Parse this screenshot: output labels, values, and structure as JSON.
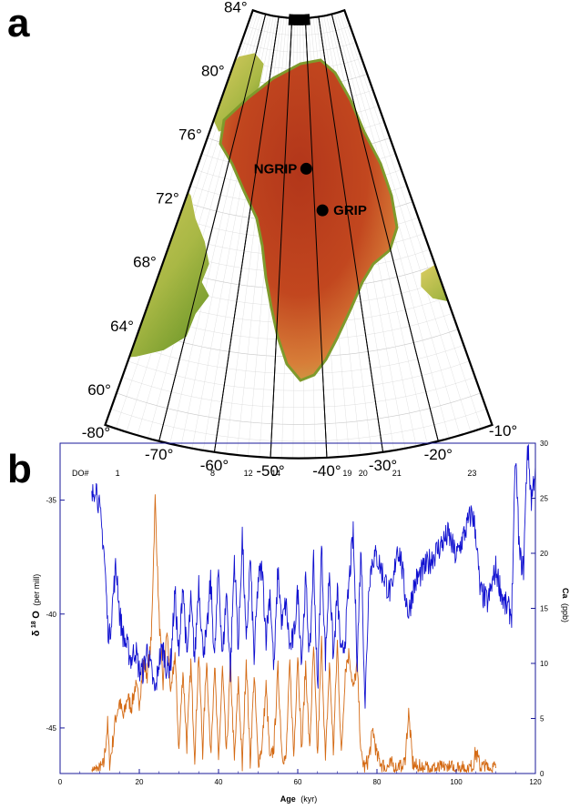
{
  "panel_a": {
    "letter": "a",
    "latitude_labels": [
      "84°",
      "80°",
      "76°",
      "72°",
      "68°",
      "64°",
      "60°"
    ],
    "longitude_labels": [
      "-80°",
      "-70°",
      "-60°",
      "-50°",
      "-40°",
      "-30°",
      "-20°",
      "-10°"
    ],
    "sites": [
      {
        "name": "NGRIP",
        "lat": 75.1,
        "lon": -42.3
      },
      {
        "name": "GRIP",
        "lat": 72.6,
        "lon": -37.6
      }
    ],
    "colors": {
      "ice_high": "#b2361a",
      "ice_mid": "#cf6a2a",
      "land_low": "#6f9a24",
      "land_mid": "#d9c95a",
      "frame": "#000000"
    }
  },
  "chart_data": {
    "type": "line",
    "letter": "b",
    "xlabel": "Age",
    "xlabel_unit": "(kyr)",
    "xlim": [
      0,
      120
    ],
    "xticks": [
      0,
      20,
      40,
      60,
      80,
      100,
      120
    ],
    "ylabel_left": "δ18O",
    "ylabel_left_symbol": "δ",
    "ylabel_left_sup": "18",
    "ylabel_left_letter": "O",
    "ylabel_left_unit": "(per mill)",
    "ylim_left": [
      -47,
      -32.5
    ],
    "yticks_left": [
      -35,
      -40,
      -45
    ],
    "ylabel_right": "Ca",
    "ylabel_right_unit": "(ppb)",
    "ylim_right": [
      0,
      30
    ],
    "yticks_right": [
      0,
      5,
      10,
      15,
      20,
      25,
      30
    ],
    "do_header": "DO#",
    "do_events": [
      {
        "label": "1",
        "age": 14.5
      },
      {
        "label": "8",
        "age": 38.5
      },
      {
        "label": "12",
        "age": 47.5
      },
      {
        "label": "14",
        "age": 54.5
      },
      {
        "label": "19",
        "age": 72.5
      },
      {
        "label": "20",
        "age": 76.5
      },
      {
        "label": "21",
        "age": 85.0
      },
      {
        "label": "23",
        "age": 104.0
      }
    ],
    "series": [
      {
        "variable": "d18O",
        "axis": "left",
        "color": "#1010d0",
        "x": [
          8,
          9,
          10,
          11,
          11.5,
          12,
          12.5,
          13,
          14,
          14.5,
          15,
          16,
          17,
          18,
          19,
          20,
          21,
          22,
          23,
          24,
          25,
          26,
          27,
          28,
          29,
          30,
          31,
          32,
          33,
          34,
          35,
          36,
          37,
          38,
          39,
          40,
          41,
          42,
          43,
          44,
          45,
          46,
          47,
          48,
          49,
          50,
          51,
          52,
          53,
          54,
          55,
          56,
          57,
          58,
          59,
          60,
          61,
          62,
          63,
          64,
          65,
          66,
          67,
          68,
          69,
          70,
          71,
          72,
          73,
          74,
          75,
          76,
          77,
          78,
          79,
          80,
          81,
          82,
          83,
          84,
          85,
          86,
          87,
          88,
          89,
          90,
          92,
          94,
          96,
          98,
          100,
          102,
          104,
          105,
          106,
          108,
          110,
          112,
          114,
          115,
          116,
          117,
          118,
          119,
          120
        ],
        "y": [
          -35.0,
          -34.2,
          -35.5,
          -37.0,
          -38.5,
          -40.5,
          -41.0,
          -40.0,
          -38.0,
          -38.5,
          -40.0,
          -41.0,
          -41.5,
          -42.0,
          -41.5,
          -42.5,
          -42.5,
          -41.5,
          -42.5,
          -43.5,
          -42.0,
          -41.5,
          -42.5,
          -42.0,
          -39.0,
          -42.0,
          -38.5,
          -42.0,
          -39.5,
          -42.0,
          -38.5,
          -41.5,
          -41.0,
          -38.5,
          -42.0,
          -38.0,
          -42.0,
          -39.0,
          -42.5,
          -37.5,
          -41.5,
          -36.5,
          -41.5,
          -37.5,
          -42.0,
          -38.5,
          -38.0,
          -41.0,
          -39.0,
          -42.5,
          -38.0,
          -40.5,
          -39.5,
          -41.5,
          -41.0,
          -39.0,
          -42.0,
          -38.5,
          -42.0,
          -37.5,
          -43.5,
          -37.0,
          -42.0,
          -38.0,
          -42.0,
          -39.0,
          -42.0,
          -41.0,
          -38.5,
          -36.5,
          -42.0,
          -37.0,
          -44.0,
          -38.5,
          -37.5,
          -37.5,
          -38.0,
          -38.5,
          -39.0,
          -39.0,
          -37.0,
          -37.5,
          -39.0,
          -40.0,
          -39.0,
          -38.5,
          -38.0,
          -37.5,
          -37.0,
          -36.5,
          -37.5,
          -36.5,
          -35.5,
          -36.5,
          -39.0,
          -39.5,
          -38.0,
          -39.5,
          -40.0,
          -33.0,
          -37.5,
          -38.0,
          -32.5,
          -35.0,
          -33.5
        ]
      },
      {
        "variable": "Ca",
        "axis": "right",
        "color": "#d46a14",
        "x": [
          8,
          10,
          11,
          12,
          12.5,
          13,
          14,
          15,
          16,
          17,
          18,
          19,
          20,
          21,
          22,
          23,
          24,
          25,
          26,
          27,
          28,
          29,
          30,
          31,
          32,
          33,
          34,
          35,
          36,
          37,
          38,
          39,
          40,
          41,
          42,
          43,
          44,
          45,
          46,
          47,
          48,
          49,
          50,
          51,
          52,
          53,
          54,
          55,
          56,
          57,
          58,
          59,
          60,
          61,
          62,
          63,
          64,
          65,
          66,
          67,
          68,
          69,
          70,
          71,
          72,
          73,
          74,
          75,
          76,
          77,
          78,
          79,
          80,
          82,
          84,
          86,
          87,
          88,
          89,
          90,
          92,
          95,
          100,
          104,
          105,
          106,
          108,
          110
        ],
        "y": [
          0.2,
          0.3,
          0.8,
          4.5,
          1.0,
          2.0,
          5.0,
          6.5,
          5.0,
          7.0,
          6.0,
          8.0,
          6.5,
          10.0,
          9.0,
          12.0,
          25.0,
          14.0,
          8.0,
          13.0,
          7.0,
          11.0,
          2.0,
          9.5,
          2.5,
          10.0,
          1.5,
          11.0,
          2.0,
          10.5,
          1.5,
          10.0,
          1.0,
          9.5,
          1.5,
          10.0,
          1.0,
          8.5,
          0.5,
          10.5,
          1.0,
          9.0,
          1.0,
          2.5,
          8.0,
          1.0,
          2.5,
          9.5,
          2.0,
          1.0,
          10.0,
          1.5,
          11.0,
          2.0,
          10.0,
          2.0,
          11.5,
          1.5,
          12.0,
          1.0,
          10.0,
          2.0,
          12.0,
          1.5,
          9.5,
          11.0,
          7.5,
          10.0,
          1.5,
          0.5,
          1.5,
          4.0,
          1.5,
          0.5,
          0.8,
          0.5,
          1.0,
          5.5,
          1.0,
          0.5,
          0.5,
          0.4,
          0.5,
          0.5,
          2.0,
          0.6,
          0.5,
          0.5
        ]
      }
    ]
  }
}
